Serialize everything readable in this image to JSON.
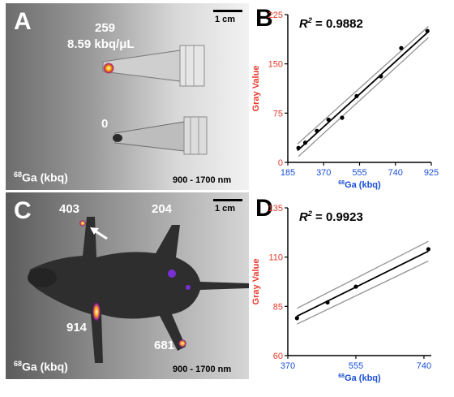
{
  "panels": {
    "A": {
      "letter": "A",
      "tube_top_value": "259",
      "tube_top_conc": "8.59 kbq/μL",
      "tube_bottom_value": "0",
      "isotope_label_sup": "68",
      "isotope_label_rest": "Ga (kbq)",
      "scale_bar": "1 cm",
      "wavelength": "900 - 1700 nm"
    },
    "C": {
      "letter": "C",
      "label_tl": "403",
      "label_tr": "204",
      "label_bl": "914",
      "label_br": "681",
      "isotope_label_sup": "68",
      "isotope_label_rest": "Ga (kbq)",
      "scale_bar": "1 cm",
      "wavelength": "900 - 1700 nm"
    },
    "B": {
      "letter": "B"
    },
    "D": {
      "letter": "D"
    }
  },
  "colors": {
    "axis_y_text": "#e8392b",
    "axis_x_text": "#1a4fd6",
    "fit_line": "#000000",
    "ci_line": "#999999",
    "hotspot": "#ff9f1c"
  },
  "chart_data": [
    {
      "id": "B",
      "type": "scatter",
      "r2_label": "R",
      "r2_sup": "2",
      "r2_value": " = 0.9882",
      "xlabel_sup": "68",
      "xlabel_rest": "Ga (kbq)",
      "ylabel": "Gray Value",
      "xlim": [
        185,
        925
      ],
      "ylim": [
        0,
        225
      ],
      "xticks": [
        185,
        370,
        555,
        740,
        925
      ],
      "xtick_labels": [
        "185",
        "370",
        "555",
        "740",
        "925"
      ],
      "yticks": [
        0,
        75,
        150,
        225
      ],
      "ytick_labels": [
        "0",
        "75",
        "150",
        "225"
      ],
      "x": [
        240,
        275,
        335,
        395,
        465,
        540,
        665,
        770,
        905
      ],
      "y": [
        22,
        30,
        48,
        65,
        68,
        101,
        131,
        174,
        200
      ],
      "fit": [
        [
          235,
          18
        ],
        [
          910,
          199
        ]
      ],
      "ci_upper": [
        [
          235,
          28
        ],
        [
          910,
          207
        ]
      ],
      "ci_lower": [
        [
          240,
          9
        ],
        [
          910,
          190
        ]
      ]
    },
    {
      "id": "D",
      "type": "scatter",
      "r2_label": "R",
      "r2_sup": "2",
      "r2_value": " = 0.9923",
      "xlabel_sup": "68",
      "xlabel_rest": "Ga (kbq)",
      "ylabel": "Gray Value",
      "xlim": [
        370,
        760
      ],
      "ylim": [
        60,
        135
      ],
      "xticks": [
        370,
        555,
        740
      ],
      "xtick_labels": [
        "370",
        "555",
        "740"
      ],
      "yticks": [
        60,
        85,
        110,
        135
      ],
      "ytick_labels": [
        "60",
        "85",
        "110",
        "135"
      ],
      "x": [
        395,
        478,
        555,
        752
      ],
      "y": [
        79,
        87,
        95,
        114
      ],
      "fit": [
        [
          395,
          80
        ],
        [
          752,
          113
        ]
      ],
      "ci_upper": [
        [
          395,
          84
        ],
        [
          752,
          118
        ]
      ],
      "ci_lower": [
        [
          395,
          76
        ],
        [
          752,
          108
        ]
      ]
    }
  ]
}
